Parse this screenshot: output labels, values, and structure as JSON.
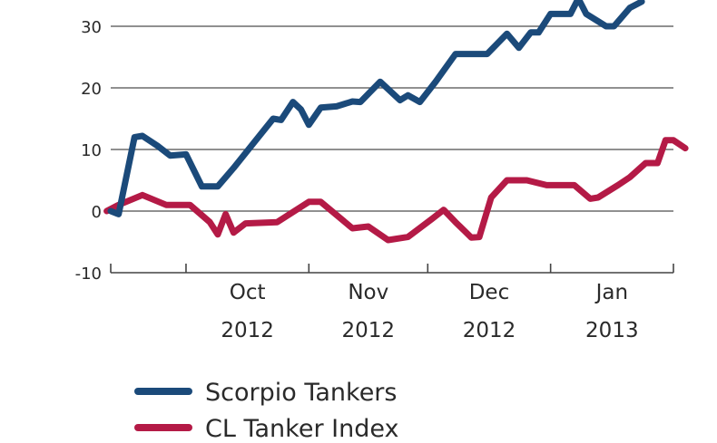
{
  "chart_data": {
    "type": "line",
    "title": "",
    "xlabel": "",
    "ylabel": "",
    "ylim": [
      -10,
      36
    ],
    "yticks": [
      -10,
      0,
      10,
      20,
      30
    ],
    "ytick_labels": [
      "-10",
      "0",
      "10",
      "20",
      "30"
    ],
    "grid": "horizontal",
    "legend_position": "bottom-left",
    "x_ticks": [
      {
        "month": "Oct",
        "year": "2012"
      },
      {
        "month": "Nov",
        "year": "2012"
      },
      {
        "month": "Dec",
        "year": "2012"
      },
      {
        "month": "Jan",
        "year": "2013"
      }
    ],
    "x_domain": [
      "2012-09-12",
      "2013-02-01"
    ],
    "month_boundaries": [
      "2012-10-01",
      "2012-11-01",
      "2012-12-01",
      "2013-01-01",
      "2013-02-01"
    ],
    "series": [
      {
        "name": "Scorpio Tankers",
        "color": "#1b4a7a",
        "points": [
          [
            "2012-09-12",
            0
          ],
          [
            "2012-09-14",
            -0.5
          ],
          [
            "2012-09-18",
            12
          ],
          [
            "2012-09-20",
            12.2
          ],
          [
            "2012-09-24",
            10.5
          ],
          [
            "2012-09-27",
            9
          ],
          [
            "2012-10-01",
            9.2
          ],
          [
            "2012-10-05",
            4
          ],
          [
            "2012-10-09",
            4
          ],
          [
            "2012-10-13",
            7
          ],
          [
            "2012-10-18",
            11
          ],
          [
            "2012-10-23",
            15
          ],
          [
            "2012-10-25",
            14.8
          ],
          [
            "2012-10-28",
            17.7
          ],
          [
            "2012-10-30",
            16.5
          ],
          [
            "2012-11-01",
            14
          ],
          [
            "2012-11-04",
            16.8
          ],
          [
            "2012-11-08",
            17
          ],
          [
            "2012-11-12",
            17.8
          ],
          [
            "2012-11-14",
            17.7
          ],
          [
            "2012-11-19",
            21
          ],
          [
            "2012-11-24",
            18
          ],
          [
            "2012-11-26",
            18.8
          ],
          [
            "2012-11-29",
            17.7
          ],
          [
            "2012-12-03",
            21
          ],
          [
            "2012-12-08",
            25.5
          ],
          [
            "2012-12-16",
            25.5
          ],
          [
            "2012-12-21",
            28.8
          ],
          [
            "2012-12-24",
            26.5
          ],
          [
            "2012-12-27",
            29
          ],
          [
            "2012-12-29",
            29
          ],
          [
            "2013-01-01",
            32
          ],
          [
            "2013-01-06",
            32
          ],
          [
            "2013-01-08",
            34.5
          ],
          [
            "2013-01-10",
            32
          ],
          [
            "2013-01-15",
            30
          ],
          [
            "2013-01-17",
            30
          ],
          [
            "2013-01-21",
            33
          ],
          [
            "2013-01-24",
            34
          ]
        ]
      },
      {
        "name": "CL Tanker Index",
        "color": "#b41a46",
        "points": [
          [
            "2012-09-11",
            0
          ],
          [
            "2012-09-14",
            1
          ],
          [
            "2012-09-20",
            2.6
          ],
          [
            "2012-09-26",
            1
          ],
          [
            "2012-10-02",
            1
          ],
          [
            "2012-10-07",
            -1.8
          ],
          [
            "2012-10-09",
            -3.8
          ],
          [
            "2012-10-11",
            -0.5
          ],
          [
            "2012-10-13",
            -3.5
          ],
          [
            "2012-10-16",
            -2
          ],
          [
            "2012-10-24",
            -1.8
          ],
          [
            "2012-11-01",
            1.5
          ],
          [
            "2012-11-04",
            1.5
          ],
          [
            "2012-11-12",
            -2.8
          ],
          [
            "2012-11-16",
            -2.5
          ],
          [
            "2012-11-21",
            -4.7
          ],
          [
            "2012-11-26",
            -4.2
          ],
          [
            "2012-12-02",
            -1.3
          ],
          [
            "2012-12-05",
            0.2
          ],
          [
            "2012-12-08",
            -1.8
          ],
          [
            "2012-12-12",
            -4.3
          ],
          [
            "2012-12-14",
            -4.2
          ],
          [
            "2012-12-17",
            2.2
          ],
          [
            "2012-12-21",
            5
          ],
          [
            "2012-12-26",
            5
          ],
          [
            "2012-12-31",
            4.2
          ],
          [
            "2013-01-07",
            4.2
          ],
          [
            "2013-01-11",
            2
          ],
          [
            "2013-01-13",
            2.2
          ],
          [
            "2013-01-18",
            4.2
          ],
          [
            "2013-01-21",
            5.5
          ],
          [
            "2013-01-25",
            7.8
          ],
          [
            "2013-01-28",
            7.8
          ],
          [
            "2013-01-30",
            11.5
          ],
          [
            "2013-02-01",
            11.5
          ],
          [
            "2013-02-04",
            10.2
          ]
        ]
      }
    ]
  }
}
